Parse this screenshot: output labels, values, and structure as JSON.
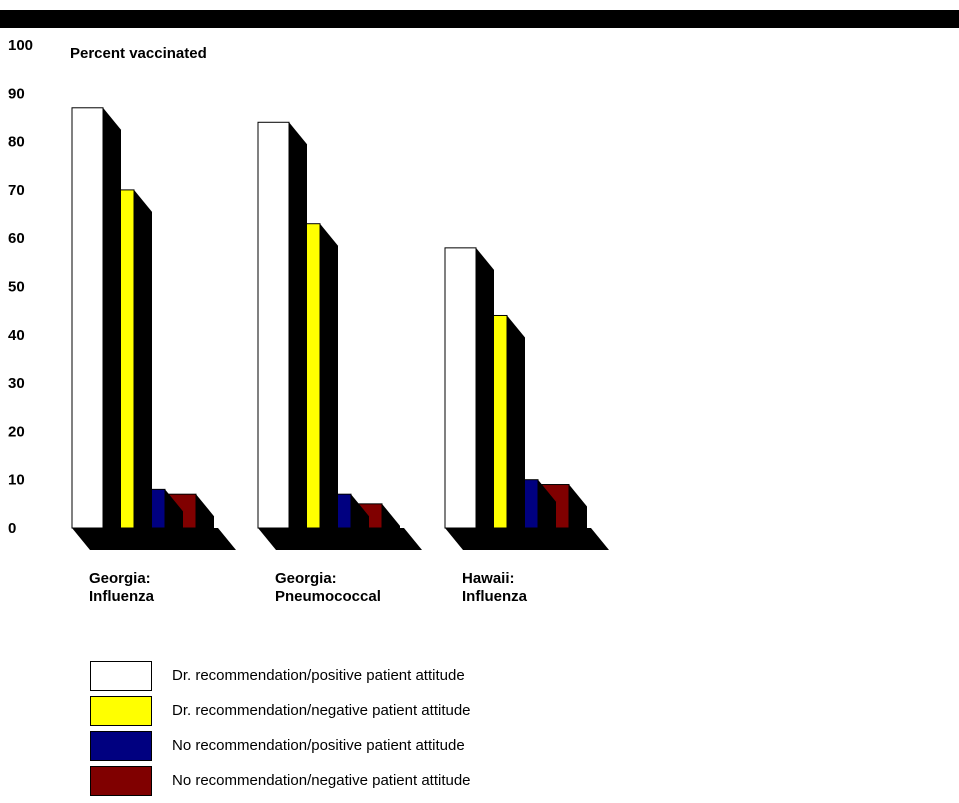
{
  "chart_data": {
    "type": "bar",
    "ylabel": "Percent vaccinated",
    "ylim": [
      0,
      100
    ],
    "yticks": [
      "100",
      "90",
      "80",
      "70",
      "60",
      "50",
      "40",
      "30",
      "20",
      "10",
      "0"
    ],
    "categories": [
      [
        "Georgia:",
        "Influenza"
      ],
      [
        "Georgia:",
        "Pneumococcal"
      ],
      [
        "Hawaii:",
        "Influenza"
      ]
    ],
    "series": [
      {
        "name": "Dr. recommendation/positive patient attitude",
        "color": "#ffffff",
        "values": [
          87,
          84,
          58
        ]
      },
      {
        "name": "Dr. recommendation/negative patient attitude",
        "color": "#ffff00",
        "values": [
          70,
          63,
          44
        ]
      },
      {
        "name": "No recommendation/positive patient attitude",
        "color": "#000080",
        "values": [
          8,
          7,
          10
        ]
      },
      {
        "name": "No recommendation/negative patient attitude",
        "color": "#800000",
        "values": [
          7,
          5,
          9
        ]
      }
    ],
    "grid": false,
    "legend_position": "bottom"
  }
}
